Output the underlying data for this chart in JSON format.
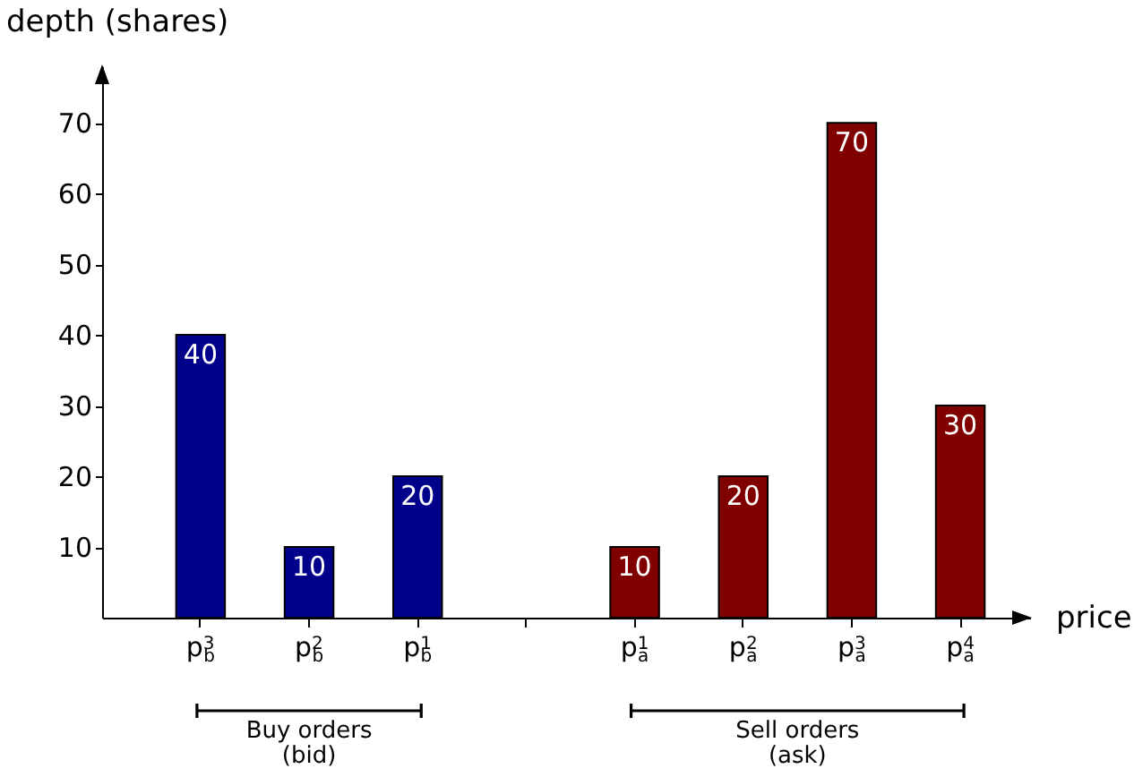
{
  "chart_data": {
    "type": "bar",
    "xlabel": "price",
    "ylabel": "depth (shares)",
    "categories": [
      "p$^{3}$$_{b}$",
      "p$^{2}$$_{b}$",
      "p$^{1}$$_{b}$",
      null,
      "p$^{1}$$_{a}$",
      "p$^{2}$$_{a}$",
      "p$^{3}$$_{a}$",
      "p$^{4}$$_{a}$"
    ],
    "values": [
      40,
      10,
      20,
      null,
      10,
      20,
      70,
      30
    ],
    "colors": [
      "#00008b",
      "#00008b",
      "#00008b",
      "#00008b",
      "#800000",
      "#800000",
      "#800000",
      "#800000"
    ],
    "ylim": [
      0,
      78
    ],
    "yticks": [
      10,
      20,
      30,
      40,
      50,
      60,
      70
    ],
    "data_labels": true,
    "grid": false,
    "annotations": [
      "Buy orders\n(bid)",
      "Sell orders\n(ask)"
    ]
  }
}
